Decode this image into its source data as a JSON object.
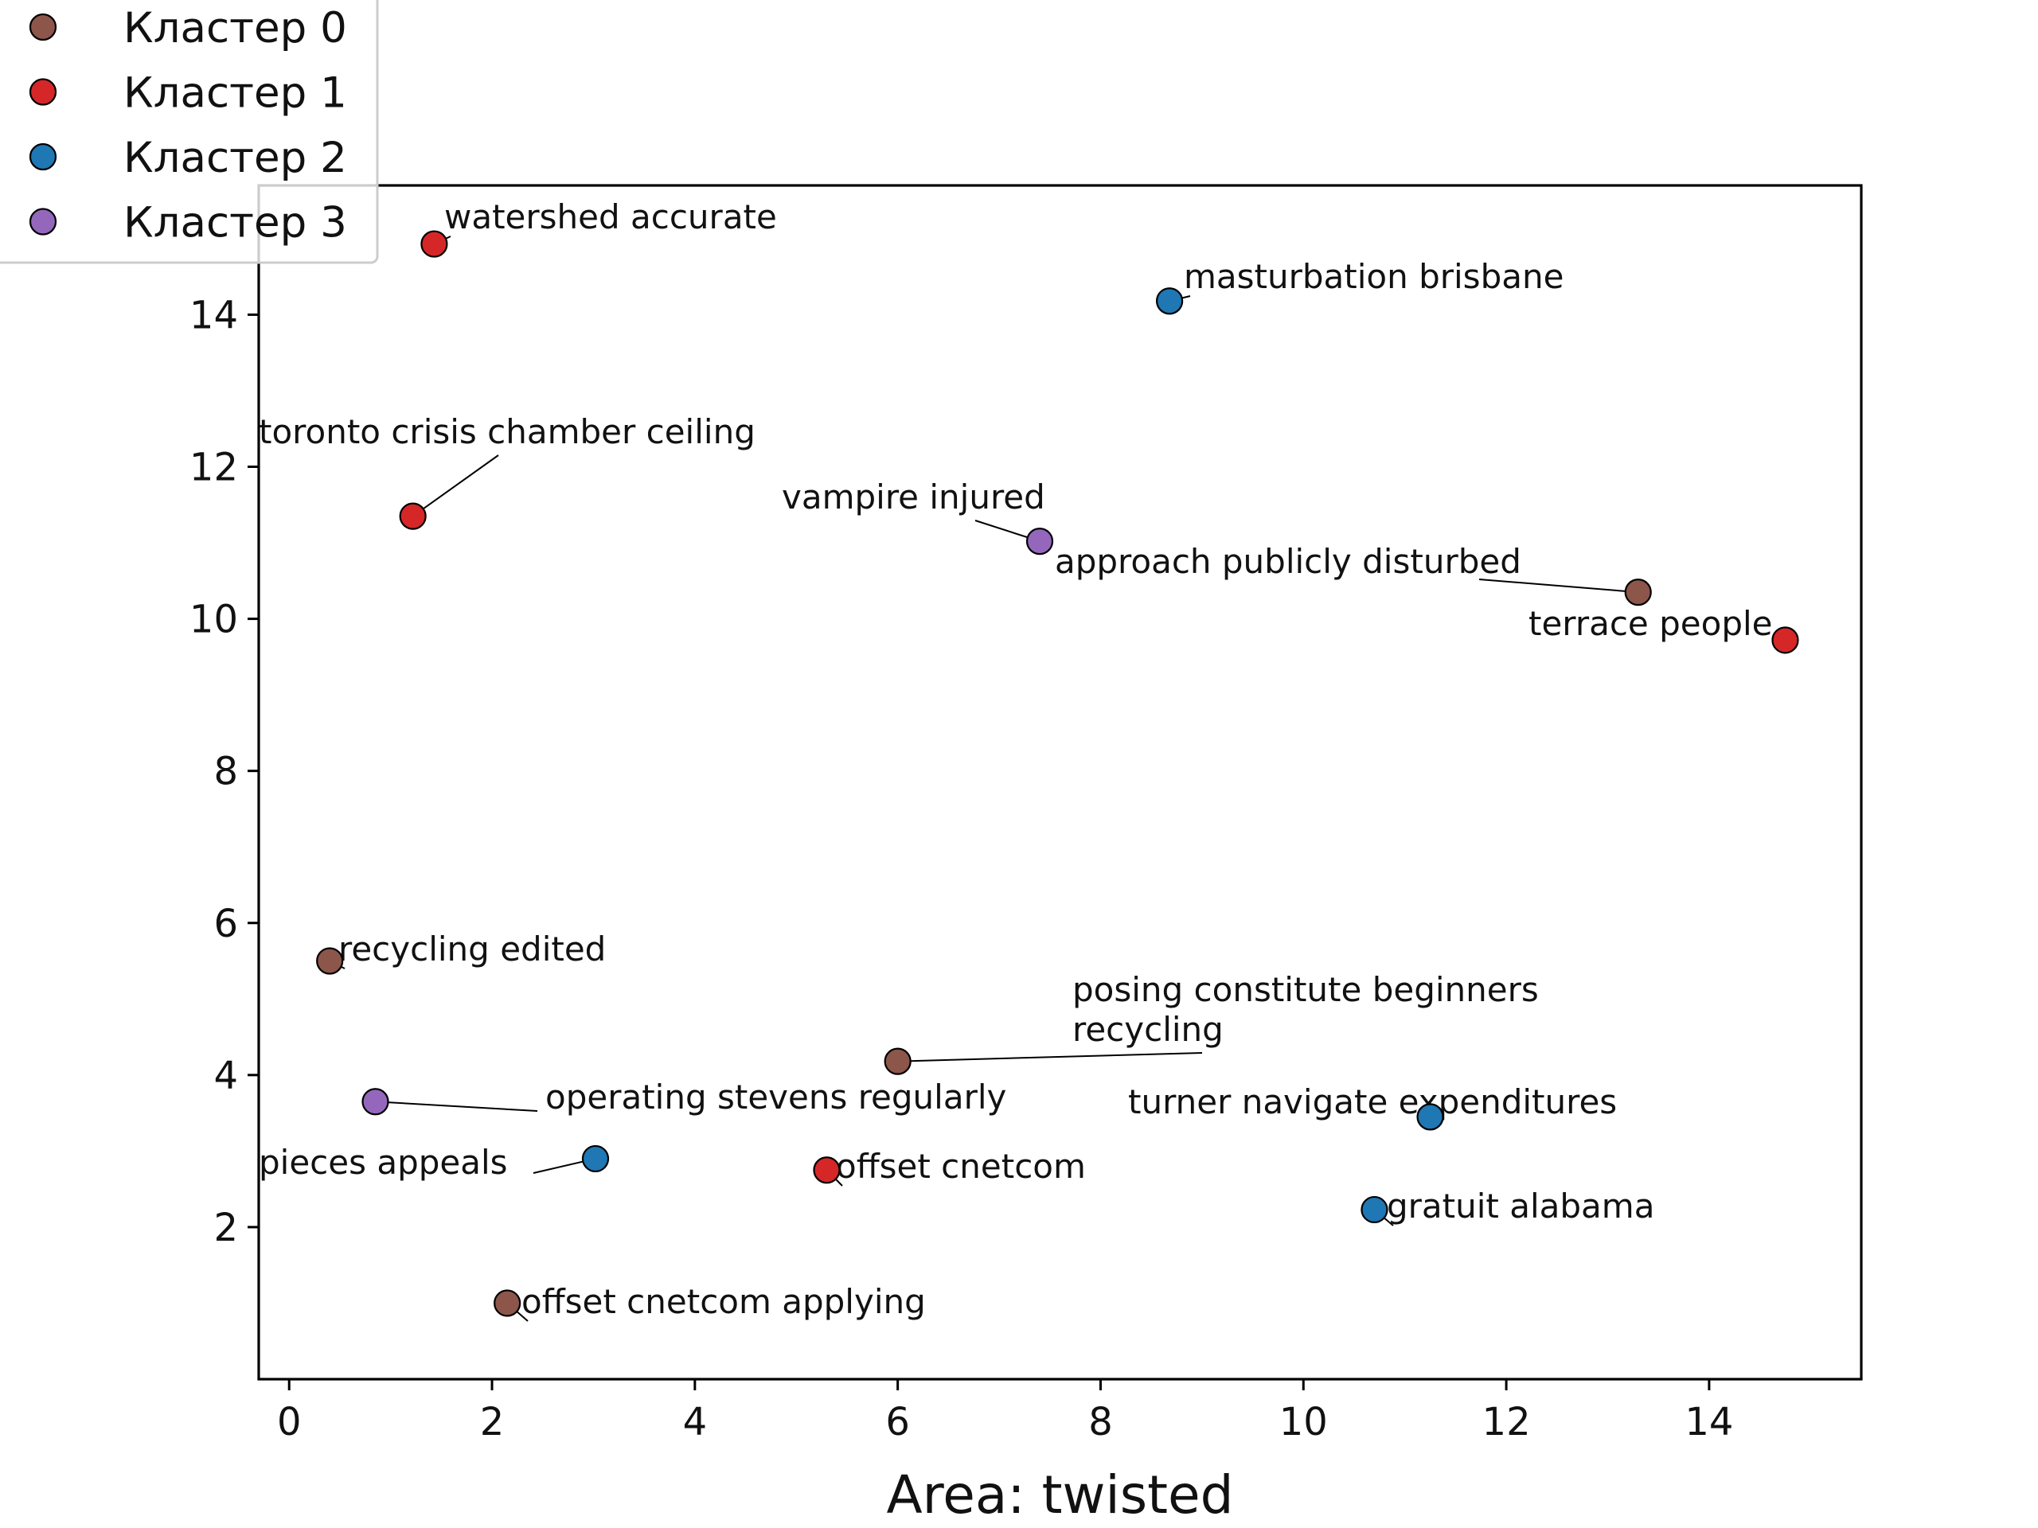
{
  "chart_data": {
    "type": "scatter",
    "title": "",
    "xlabel": "Area: twisted",
    "ylabel": "",
    "xlim": [
      -0.3,
      15.5
    ],
    "ylim": [
      0.0,
      15.7
    ],
    "xticks": [
      "0",
      "2",
      "4",
      "6",
      "8",
      "10",
      "12",
      "14"
    ],
    "yticks": [
      "2",
      "4",
      "6",
      "8",
      "10",
      "12",
      "14"
    ],
    "grid": false,
    "legend_position": "top-left",
    "series": [
      {
        "name": "Кластер 0",
        "color": "#8c564b",
        "points": [
          {
            "x": 13.3,
            "y": 10.35,
            "label": "approach publicly disturbed"
          },
          {
            "x": 0.4,
            "y": 5.5,
            "label": "recycling edited"
          },
          {
            "x": 6.0,
            "y": 4.18,
            "label": "posing constitute beginners recycling"
          },
          {
            "x": 2.15,
            "y": 1.0,
            "label": "offset cnetcom applying"
          }
        ]
      },
      {
        "name": "Кластер 1",
        "color": "#d62728",
        "points": [
          {
            "x": 1.43,
            "y": 14.93,
            "label": "watershed accurate"
          },
          {
            "x": 1.22,
            "y": 11.35,
            "label": "toronto crisis chamber ceiling"
          },
          {
            "x": 14.75,
            "y": 9.72,
            "label": "terrace people"
          },
          {
            "x": 5.3,
            "y": 2.75,
            "label": "offset cnetcom"
          }
        ]
      },
      {
        "name": "Кластер 2",
        "color": "#1f77b4",
        "points": [
          {
            "x": 8.68,
            "y": 14.18,
            "label": "masturbation brisbane"
          },
          {
            "x": 11.25,
            "y": 3.45,
            "label": "turner navigate expenditures"
          },
          {
            "x": 3.02,
            "y": 2.9,
            "label": "pieces appeals"
          },
          {
            "x": 10.7,
            "y": 2.23,
            "label": "gratuit alabama"
          }
        ]
      },
      {
        "name": "Кластер 3",
        "color": "#9467bd",
        "points": [
          {
            "x": 7.4,
            "y": 11.02,
            "label": "vampire injured"
          },
          {
            "x": 0.85,
            "y": 3.65,
            "label": "operating stevens regularly"
          }
        ]
      }
    ]
  }
}
